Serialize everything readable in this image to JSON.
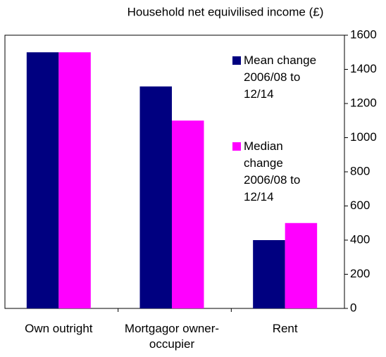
{
  "chart_data": {
    "type": "bar",
    "title": "Household net equivilised income (£)",
    "categories": [
      "Own outright",
      "Mortgagor owner-occupier",
      "Rent"
    ],
    "series": [
      {
        "name": "Mean change 2006/08 to 12/14",
        "color": "#000080",
        "values": [
          1500,
          1300,
          400
        ]
      },
      {
        "name": "Median change 2006/08 to 12/14",
        "color": "#ff00ff",
        "values": [
          1500,
          1100,
          500
        ]
      }
    ],
    "ylim": [
      0,
      1600
    ],
    "yticks": [
      0,
      200,
      400,
      600,
      800,
      1000,
      1200,
      1400,
      1600
    ],
    "y_axis_side": "right",
    "grid": false
  }
}
